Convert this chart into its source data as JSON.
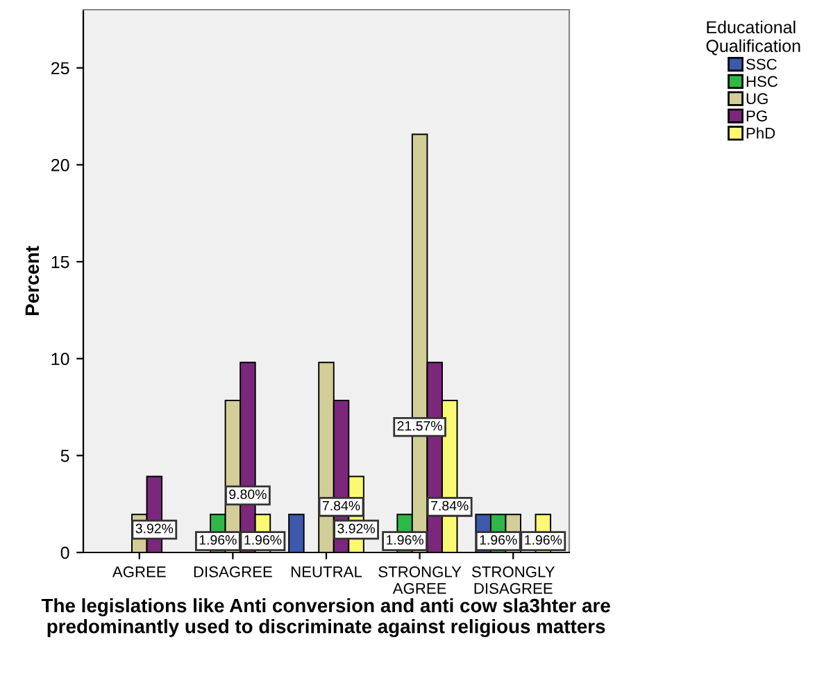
{
  "chart_data": {
    "type": "bar",
    "ylabel": "Percent",
    "xlabel": "The legislations like Anti conversion and anti cow sla3hter are predominantly used to discriminate against religious matters",
    "legend_title": "Educational Qualification",
    "legend": "top right",
    "categories": [
      "AGREE",
      "DISAGREE",
      "NEUTRAL",
      "STRONGLY AGREE",
      "STRONGLY DISAGREE"
    ],
    "ylim": [
      0,
      28
    ],
    "yticks": [
      0,
      5,
      10,
      15,
      20,
      25
    ],
    "series": [
      {
        "name": "SSC",
        "color": "#3e58ac",
        "values": [
          null,
          null,
          1.96,
          null,
          1.96
        ],
        "value_labels": [
          null,
          null,
          null,
          null,
          null
        ]
      },
      {
        "name": "HSC",
        "color": "#2eb848",
        "values": [
          null,
          1.96,
          null,
          1.96,
          1.96
        ],
        "value_labels": [
          null,
          "1.96%",
          null,
          "1.96%",
          "1.96%"
        ]
      },
      {
        "name": "UG",
        "color": "#d3ce97",
        "values": [
          1.96,
          7.84,
          9.8,
          21.57,
          1.96
        ],
        "value_labels": [
          null,
          null,
          null,
          "21.57%",
          null
        ]
      },
      {
        "name": "PG",
        "color": "#7b287c",
        "values": [
          3.92,
          9.8,
          7.84,
          9.8,
          null
        ],
        "value_labels": [
          "3.92%",
          "9.80%",
          "7.84%",
          null,
          null
        ]
      },
      {
        "name": "PhD",
        "color": "#fbf873",
        "values": [
          null,
          1.96,
          3.92,
          7.84,
          1.96
        ],
        "value_labels": [
          null,
          "1.96%",
          "3.92%",
          "7.84%",
          "1.96%"
        ]
      }
    ]
  }
}
